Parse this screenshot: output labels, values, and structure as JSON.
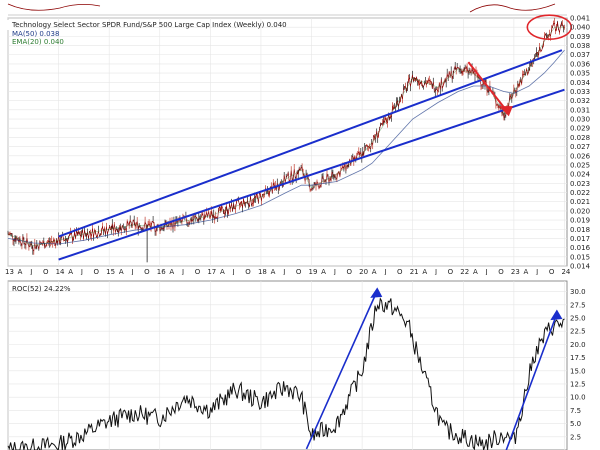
{
  "chart_data": [
    {
      "type": "ohlc-line",
      "title": "Technology Select Sector SPDR Fund/S&P 500 Large Cap Index (Weekly) 0.040",
      "legend": [
        {
          "label": "MA(50) 0.038",
          "color": "#1f3c88"
        },
        {
          "label": "EMA(20) 0.040",
          "color": "#2e7d32"
        }
      ],
      "ylim": [
        0.014,
        0.041
      ],
      "yticks": [
        0.014,
        0.015,
        0.016,
        0.017,
        0.018,
        0.019,
        0.02,
        0.021,
        0.022,
        0.023,
        0.024,
        0.025,
        0.026,
        0.027,
        0.028,
        0.029,
        0.03,
        0.031,
        0.032,
        0.033,
        0.034,
        0.035,
        0.036,
        0.037,
        0.038,
        0.039,
        0.04,
        0.041
      ],
      "ytick_labels": [
        "0.014",
        "0.015",
        "0.016",
        "0.017",
        "0.018",
        "0.019",
        "0.020",
        "0.021",
        "0.022",
        "0.023",
        "0.024",
        "0.025",
        "0.026",
        "0.027",
        "0.028",
        "0.029",
        "0.030",
        "0.031",
        "0.032",
        "0.033",
        "0.034",
        "0.035",
        "0.036",
        "0.037",
        "0.038",
        "0.039",
        "0.040",
        "0.041"
      ],
      "xlim": [
        2013.0,
        2024.05
      ],
      "x": [
        2013.0,
        2013.5,
        2014.0,
        2014.5,
        2015.0,
        2015.5,
        2016.0,
        2016.5,
        2017.0,
        2017.5,
        2018.0,
        2018.5,
        2018.8,
        2019.0,
        2019.5,
        2020.0,
        2020.2,
        2020.5,
        2021.0,
        2021.5,
        2021.9,
        2022.2,
        2022.5,
        2022.8,
        2023.0,
        2023.3,
        2023.6,
        2023.8,
        2024.0
      ],
      "values": [
        0.0175,
        0.0162,
        0.0168,
        0.0175,
        0.018,
        0.0185,
        0.0182,
        0.0189,
        0.0195,
        0.0205,
        0.0215,
        0.0235,
        0.0245,
        0.0225,
        0.024,
        0.0262,
        0.0275,
        0.03,
        0.0345,
        0.0335,
        0.0355,
        0.035,
        0.0335,
        0.0305,
        0.033,
        0.0355,
        0.0385,
        0.04,
        0.04
      ],
      "ma": [
        0.017,
        0.0165,
        0.0164,
        0.0168,
        0.0174,
        0.0179,
        0.0182,
        0.0185,
        0.019,
        0.0197,
        0.0206,
        0.022,
        0.0228,
        0.0228,
        0.0232,
        0.0245,
        0.0252,
        0.027,
        0.03,
        0.0318,
        0.033,
        0.0336,
        0.0336,
        0.033,
        0.0328,
        0.0336,
        0.035,
        0.0362,
        0.0375
      ],
      "x_labels": [
        "13",
        "A",
        "J",
        "O",
        "14",
        "A",
        "J",
        "O",
        "15",
        "A",
        "J",
        "O",
        "16",
        "A",
        "J",
        "O",
        "17",
        "A",
        "J",
        "O",
        "18",
        "A",
        "J",
        "O",
        "19",
        "A",
        "J",
        "O",
        "20",
        "A",
        "J",
        "O",
        "21",
        "A",
        "J",
        "O",
        "22",
        "A",
        "J",
        "O",
        "23",
        "A",
        "J",
        "O",
        "24"
      ],
      "colors": {
        "price": "#8b0000",
        "ma": "#1f3c88",
        "ema": "#2e7d32",
        "channel": "#1a2ecc",
        "arrow": "#e0262b",
        "circle": "#e0262b"
      }
    },
    {
      "type": "line",
      "title": "ROC(52) 24.22%",
      "ylim": [
        0,
        32
      ],
      "yticks": [
        2.5,
        5.0,
        7.5,
        10.0,
        12.5,
        15.0,
        17.5,
        20.0,
        22.5,
        25.0,
        27.5,
        30.0
      ],
      "ytick_labels": [
        "2.5",
        "5.0",
        "7.5",
        "10.0",
        "12.5",
        "15.0",
        "17.5",
        "20.0",
        "22.5",
        "25.0",
        "27.5",
        "30.0"
      ],
      "x": [
        2013.0,
        2014.0,
        2014.5,
        2015.0,
        2015.5,
        2016.0,
        2016.5,
        2017.0,
        2017.5,
        2018.0,
        2018.5,
        2018.8,
        2019.0,
        2019.5,
        2020.0,
        2020.3,
        2020.6,
        2020.9,
        2021.3,
        2021.6,
        2022.0,
        2022.4,
        2022.8,
        2023.0,
        2023.4,
        2023.7,
        2024.0
      ],
      "values": [
        0.0,
        1.0,
        3.0,
        5.5,
        7.0,
        6.0,
        10.0,
        7.5,
        11.5,
        9.0,
        12.0,
        10.0,
        2.5,
        5.0,
        15.0,
        28.0,
        27.0,
        24.0,
        12.0,
        4.0,
        2.5,
        1.0,
        3.0,
        1.5,
        18.0,
        23.0,
        24.22
      ],
      "colors": {
        "line": "#111111",
        "trend": "#1a2ecc"
      }
    }
  ]
}
